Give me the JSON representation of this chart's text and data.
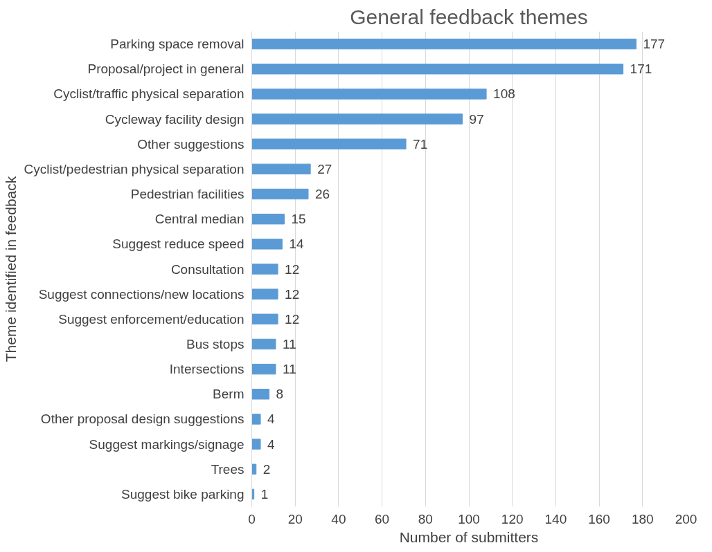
{
  "chart_data": {
    "type": "bar",
    "orientation": "horizontal",
    "title": "General feedback themes",
    "xlabel": "Number of submitters",
    "ylabel": "Theme identified in feedback",
    "categories": [
      "Parking space removal",
      "Proposal/project in general",
      "Cyclist/traffic physical separation",
      "Cycleway facility design",
      "Other suggestions",
      "Cyclist/pedestrian physical separation",
      "Pedestrian facilities",
      "Central median",
      "Suggest reduce speed",
      "Consultation",
      "Suggest connections/new locations",
      "Suggest enforcement/education",
      "Bus stops",
      "Intersections",
      "Berm",
      "Other proposal design suggestions",
      "Suggest markings/signage",
      "Trees",
      "Suggest bike parking"
    ],
    "values": [
      177,
      171,
      108,
      97,
      71,
      27,
      26,
      15,
      14,
      12,
      12,
      12,
      11,
      11,
      8,
      4,
      4,
      2,
      1
    ],
    "color": "#5b9bd5",
    "xlim": [
      0,
      200
    ],
    "xticks": [
      0,
      20,
      40,
      60,
      80,
      100,
      120,
      140,
      160,
      180,
      200
    ],
    "grid": "x",
    "data_labels": true
  }
}
